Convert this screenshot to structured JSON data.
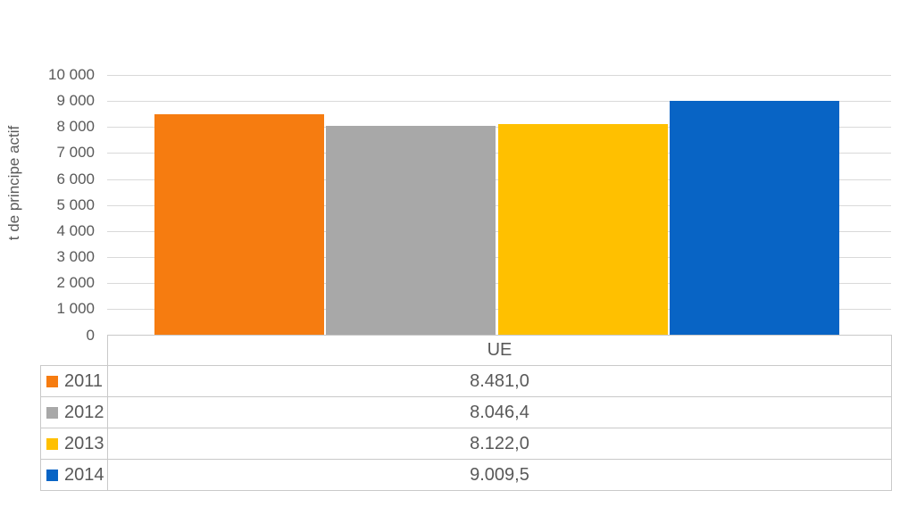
{
  "chart_data": {
    "type": "bar",
    "title": "",
    "xlabel": "",
    "ylabel": "t de principe actif",
    "categories": [
      "UE"
    ],
    "series": [
      {
        "name": "2011",
        "values": [
          8481.0
        ],
        "display": [
          "8.481,0"
        ],
        "color": "#F67C10"
      },
      {
        "name": "2012",
        "values": [
          8046.4
        ],
        "display": [
          "8.046,4"
        ],
        "color": "#A8A8A8"
      },
      {
        "name": "2013",
        "values": [
          8122.0
        ],
        "display": [
          "8.122,0"
        ],
        "color": "#FFC000"
      },
      {
        "name": "2014",
        "values": [
          9009.5
        ],
        "display": [
          "9.009,5"
        ],
        "color": "#0864C5"
      }
    ],
    "ylim": [
      0,
      10000
    ],
    "ytick_step": 1000,
    "ytick_labels": [
      "0",
      "1 000",
      "2 000",
      "3 000",
      "4 000",
      "5 000",
      "6 000",
      "7 000",
      "8 000",
      "9 000",
      "10 000"
    ],
    "grid": true,
    "legend_position": "table-left"
  },
  "colors": {
    "gridline": "#D9D9D9",
    "table_border": "#C9C9C9",
    "text": "#595959",
    "background": "#FFFFFF"
  }
}
